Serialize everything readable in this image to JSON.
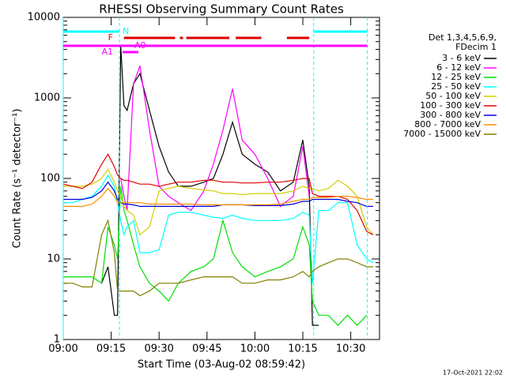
{
  "chart_data": {
    "type": "line",
    "title": "RHESSI Observing Summary Count Rates",
    "x_label": "Start Time (03-Aug-02 08:59:42)",
    "y_label": "Count Rate (s⁻¹ detector⁻¹)",
    "timestamp": "17-Oct-2021 22:02",
    "legend_header": [
      "Det 1,3,4,5,6,9,",
      "FDecim 1"
    ],
    "log_y": true,
    "xlim": [
      0,
      99
    ],
    "ylim": [
      1,
      10000
    ],
    "xticks": [
      {
        "value": 0,
        "label": "09:00"
      },
      {
        "value": 15,
        "label": "09:15"
      },
      {
        "value": 30,
        "label": "09:30"
      },
      {
        "value": 45,
        "label": "09:45"
      },
      {
        "value": 60,
        "label": "10:00"
      },
      {
        "value": 75,
        "label": "10:15"
      },
      {
        "value": 90,
        "label": "10:30"
      }
    ],
    "yticks": [
      1,
      10,
      100,
      1000,
      10000
    ],
    "flags": [
      {
        "label": "N",
        "color": "#00ffff",
        "intervals": [
          [
            0,
            17.6
          ],
          [
            78.4,
            95.2
          ]
        ]
      },
      {
        "label": "F",
        "color": "#e00000",
        "intervals": [
          [
            19,
            35
          ],
          [
            36.5,
            37.5
          ],
          [
            38.5,
            52
          ],
          [
            54,
            62
          ],
          [
            70,
            77
          ]
        ]
      },
      {
        "label": "A1",
        "color": "#ff00ff",
        "intervals": [
          [
            0,
            95.2
          ]
        ]
      },
      {
        "label": "A0",
        "color": "#ff00ff",
        "intervals": [
          [
            18.6,
            23.5
          ]
        ]
      }
    ],
    "x": [
      0,
      3,
      6,
      9,
      12,
      14,
      16,
      17,
      18,
      19,
      20,
      22,
      24,
      27,
      30,
      33,
      36,
      40,
      44,
      47,
      50,
      53,
      56,
      60,
      64,
      68,
      72,
      75,
      77,
      78,
      80,
      83,
      86,
      89,
      92,
      95,
      97
    ],
    "series": [
      {
        "name": "3 - 6 keV",
        "color": "#000000",
        "values": [
          null,
          null,
          null,
          null,
          5,
          8,
          2,
          2,
          4500,
          800,
          700,
          1500,
          2000,
          700,
          250,
          120,
          80,
          80,
          90,
          100,
          200,
          500,
          200,
          150,
          120,
          70,
          90,
          300,
          80,
          1.5,
          1.5,
          null,
          null,
          null,
          null,
          null,
          null
        ]
      },
      {
        "name": "6 - 12 keV",
        "color": "#ff00ff",
        "values": [
          null,
          null,
          null,
          null,
          null,
          null,
          null,
          null,
          100,
          60,
          40,
          1500,
          2500,
          400,
          80,
          60,
          50,
          40,
          70,
          150,
          400,
          1300,
          300,
          200,
          100,
          45,
          60,
          250,
          60,
          null,
          null,
          null,
          null,
          null,
          null,
          null,
          null
        ]
      },
      {
        "name": "12 - 25 keV",
        "color": "#00e000",
        "values": [
          6,
          6,
          6,
          6,
          5,
          25,
          15,
          10,
          80,
          40,
          30,
          15,
          8,
          5,
          4,
          3,
          5,
          7,
          8,
          10,
          30,
          12,
          8,
          6,
          7,
          8,
          10,
          25,
          15,
          3,
          2,
          2,
          1.5,
          2,
          1.5,
          2,
          null
        ]
      },
      {
        "name": "25 - 50 keV",
        "color": "#00ffff",
        "values": [
          50,
          50,
          55,
          60,
          80,
          110,
          80,
          50,
          30,
          20,
          25,
          30,
          12,
          12,
          13,
          35,
          38,
          38,
          35,
          33,
          32,
          35,
          32,
          30,
          30,
          30,
          32,
          38,
          35,
          5,
          40,
          40,
          50,
          50,
          15,
          10,
          9
        ]
      },
      {
        "name": "50 - 100 keV",
        "color": "#d0d000",
        "values": [
          80,
          80,
          80,
          85,
          100,
          130,
          90,
          70,
          60,
          45,
          40,
          35,
          20,
          25,
          70,
          75,
          80,
          75,
          72,
          70,
          65,
          65,
          63,
          65,
          65,
          65,
          70,
          80,
          75,
          75,
          70,
          75,
          95,
          80,
          60,
          25,
          20
        ]
      },
      {
        "name": "100 - 300 keV",
        "color": "#e00000",
        "values": [
          85,
          80,
          75,
          90,
          150,
          200,
          140,
          110,
          100,
          95,
          95,
          90,
          85,
          85,
          80,
          85,
          90,
          90,
          95,
          95,
          90,
          90,
          88,
          88,
          90,
          90,
          95,
          100,
          100,
          65,
          60,
          60,
          60,
          55,
          40,
          22,
          20
        ]
      },
      {
        "name": "300 - 800 keV",
        "color": "#0000e0",
        "values": [
          55,
          55,
          55,
          58,
          70,
          90,
          70,
          55,
          50,
          48,
          48,
          47,
          45,
          45,
          45,
          45,
          45,
          45,
          45,
          45,
          47,
          47,
          47,
          46,
          46,
          46,
          48,
          52,
          52,
          55,
          55,
          55,
          55,
          52,
          50,
          45,
          45
        ]
      },
      {
        "name": "800 - 7000 keV",
        "color": "#ff8c00",
        "values": [
          45,
          45,
          45,
          48,
          60,
          75,
          60,
          50,
          50,
          50,
          50,
          50,
          50,
          48,
          48,
          48,
          48,
          48,
          47,
          47,
          47,
          47,
          47,
          47,
          47,
          48,
          52,
          55,
          55,
          58,
          58,
          58,
          60,
          60,
          58,
          55,
          55
        ]
      },
      {
        "name": "7000 - 15000 keV",
        "color": "#808000",
        "values": [
          5,
          5,
          4.5,
          4.5,
          20,
          30,
          12,
          4,
          4,
          4,
          4,
          4,
          3.5,
          4,
          5,
          5,
          5,
          5.5,
          6,
          6,
          6,
          6,
          5,
          5,
          5.5,
          5.5,
          6,
          7,
          6,
          7,
          8,
          9,
          10,
          10,
          9,
          8,
          8
        ]
      }
    ]
  }
}
